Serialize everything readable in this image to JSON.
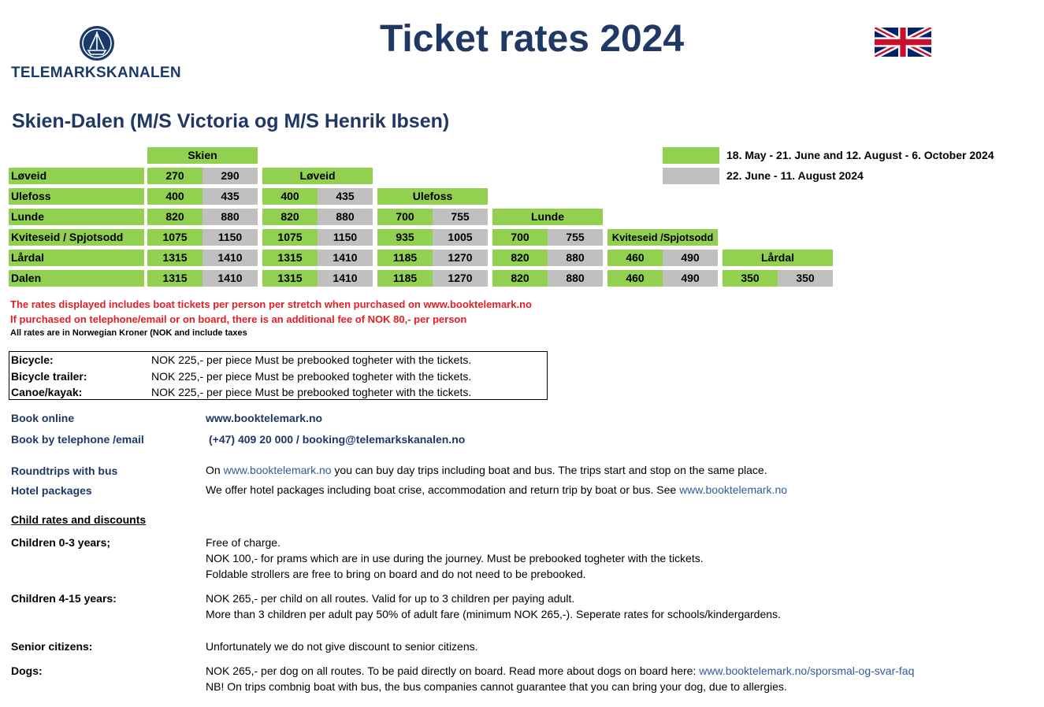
{
  "header": {
    "brand": "TELEMARKSKANALEN",
    "title": "Ticket rates 2024",
    "flag_icon": "uk-flag-icon"
  },
  "route_title": "Skien-Dalen (M/S Victoria og M/S Henrik Ibsen)",
  "legend": [
    {
      "color": "#92d050",
      "text": "18. May - 21. June and 12. August - 6. October 2024"
    },
    {
      "color": "#c0c0c0",
      "text": "22. June - 11. August 2024"
    }
  ],
  "fares": {
    "origins": [
      "Skien",
      "Løveid",
      "Ulefoss",
      "Lunde",
      "Kviteseid /Spjotsodd",
      "Lårdal"
    ],
    "destinations": [
      "Løveid",
      "Ulefoss",
      "Lunde",
      "Kviteseid / Spjotsodd",
      "Lårdal",
      "Dalen"
    ],
    "rows": [
      [
        [
          "270",
          "290"
        ]
      ],
      [
        [
          "400",
          "435"
        ],
        [
          "400",
          "435"
        ]
      ],
      [
        [
          "820",
          "880"
        ],
        [
          "820",
          "880"
        ],
        [
          "700",
          "755"
        ]
      ],
      [
        [
          "1075",
          "1150"
        ],
        [
          "1075",
          "1150"
        ],
        [
          "935",
          "1005"
        ],
        [
          "700",
          "755"
        ]
      ],
      [
        [
          "1315",
          "1410"
        ],
        [
          "1315",
          "1410"
        ],
        [
          "1185",
          "1270"
        ],
        [
          "820",
          "880"
        ],
        [
          "460",
          "490"
        ]
      ],
      [
        [
          "1315",
          "1410"
        ],
        [
          "1315",
          "1410"
        ],
        [
          "1185",
          "1270"
        ],
        [
          "820",
          "880"
        ],
        [
          "460",
          "490"
        ],
        [
          "350",
          "350"
        ]
      ]
    ]
  },
  "notes": {
    "line1": "The rates displayed includes boat tickets per person per stretch when purchased on www.booktelemark.no",
    "line2": "If purchased on telephone/email or on board, there is an additional fee of NOK 80,- per person",
    "line3": "All rates are in Norwegian Kroner (NOK and include taxes"
  },
  "extras": [
    {
      "label": "Bicycle:",
      "value": "NOK 225,- per piece  Must be prebooked togheter with the tickets."
    },
    {
      "label": "Bicycle trailer:",
      "value": "NOK 225,- per piece  Must be prebooked togheter with the tickets."
    },
    {
      "label": "Canoe/kayak:",
      "value": "NOK 225,- per piece  Must be prebooked togheter with the tickets."
    }
  ],
  "booking": {
    "online_label": "Book online",
    "online_value": "www.booktelemark.no",
    "phone_label": "Book by telephone /email",
    "phone_value": "(+47) 409 20 000 /  booking@telemarkskanalen.no"
  },
  "roundtrips": {
    "label": "Roundtrips with bus",
    "pre": "On ",
    "link": "www.booktelemark.no",
    "post": " you can buy day trips including boat and bus. The trips start and stop on the same place."
  },
  "hotel": {
    "label": "Hotel packages",
    "pre": "We offer hotel packages including boat crise, accommodation and return trip by boat or bus. See ",
    "link": "www.booktelemark.no"
  },
  "child_heading": "Child rates and discounts",
  "children_0_3": {
    "label": "Children 0-3 years;",
    "lines": [
      "Free of charge.",
      "NOK 100,- for prams which are in use during the journey. Must be prebooked togheter with the tickets.",
      "Foldable strollers are free to bring on board and do not need to be prebooked."
    ]
  },
  "children_4_15": {
    "label": "Children 4-15 years:",
    "lines": [
      "NOK 265,- per child on all routes. Valid for up to 3 children per paying adult.",
      "More than 3  children per adult pay 50% of adult fare (minimum NOK 265,-). Seperate rates for schools/kindergardens."
    ]
  },
  "seniors": {
    "label": "Senior citizens:",
    "text": "Unfortunately we do not give discount to senior citizens."
  },
  "dogs": {
    "label": "Dogs:",
    "pre": "NOK 265,- per dog on all routes. To be paid directly on board. Read more about dogs on board here: ",
    "link": "www.booktelemark.no/sporsmal-og-svar-faq",
    "line2": "NB! On trips combnig boat with bus, the bus companies cannot guarantee that you can bring your dog, due to allergies."
  }
}
